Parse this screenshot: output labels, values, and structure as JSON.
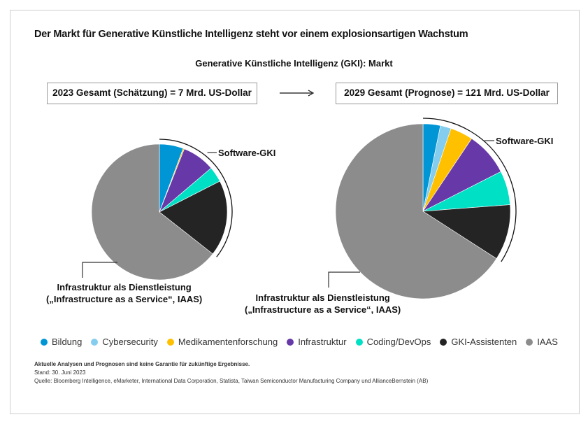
{
  "title": "Der Markt für Generative Künstliche Intelligenz steht vor einem explosionsartigen Wachstum",
  "chart_data": [
    {
      "type": "pie",
      "title": "Generative Künstliche Intelligenz (GKI): Markt",
      "heading": "2023 Gesamt (Schätzung) = 7 Mrd. US-Dollar",
      "categories": [
        "Bildung",
        "Cybersecurity",
        "Medikamentenforschung",
        "Infrastruktur",
        "Coding/DevOps",
        "GKI-Assistenten",
        "IAAS"
      ],
      "values": [
        5.7,
        0,
        0.3,
        7.8,
        3.7,
        18.1,
        64.4
      ],
      "annotations": {
        "software": "Software-GKI",
        "iaas_line1": "Infrastruktur als Dienstleistung",
        "iaas_line2": "(„Infrastructure as a Service“, IAAS)"
      }
    },
    {
      "type": "pie",
      "heading": "2029 Gesamt (Prognose) = 121 Mrd. US-Dollar",
      "categories": [
        "Bildung",
        "Cybersecurity",
        "Medikamentenforschung",
        "Infrastruktur",
        "Coding/DevOps",
        "GKI-Assistenten",
        "IAAS"
      ],
      "values": [
        3.2,
        2.0,
        4.2,
        8.1,
        6.3,
        10.3,
        65.9
      ],
      "annotations": {
        "software": "Software-GKI",
        "iaas_line1": "Infrastruktur als Dienstleistung",
        "iaas_line2": "(„Infrastructure as a Service“, IAAS)"
      }
    }
  ],
  "legend": [
    {
      "label": "Bildung",
      "color": "#0096d6"
    },
    {
      "label": "Cybersecurity",
      "color": "#84cdee"
    },
    {
      "label": "Medikamentenforschung",
      "color": "#ffc000"
    },
    {
      "label": "Infrastruktur",
      "color": "#6638a8"
    },
    {
      "label": "Coding/DevOps",
      "color": "#00e0c4"
    },
    {
      "label": "GKI-Assistenten",
      "color": "#242424"
    },
    {
      "label": "IAAS",
      "color": "#8c8c8c"
    }
  ],
  "footer": {
    "disclaimer": "Aktuelle Analysen und Prognosen sind keine Garantie für zukünftige Ergebnisse.",
    "date": "Stand: 30. Juni 2023",
    "source": "Quelle: Bloomberg Intelligence, eMarketer, International Data Corporation, Statista, Taiwan Semiconductor Manufacturing Company und AllianceBernstein (AB)"
  }
}
